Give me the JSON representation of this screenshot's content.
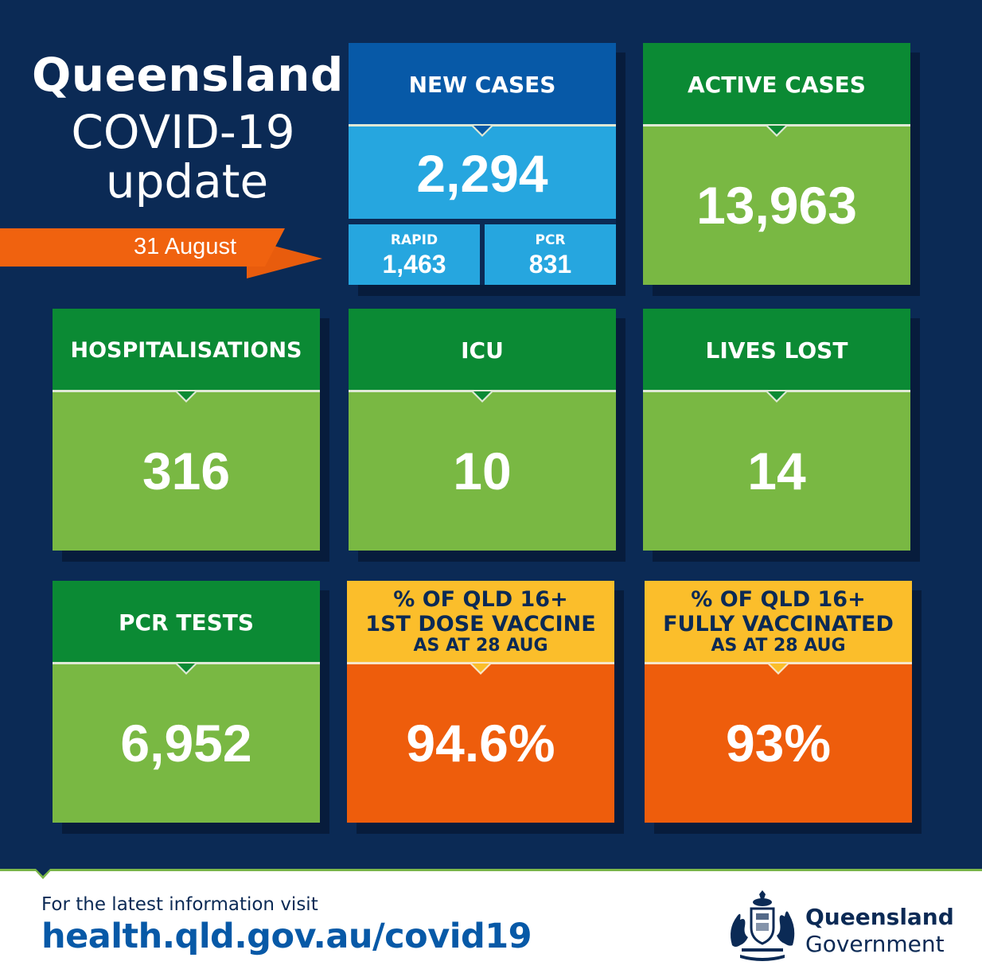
{
  "title": {
    "line1": "Queensland",
    "line2": "COVID-19",
    "line3": "update"
  },
  "date": "31 August",
  "cards": {
    "new_cases": {
      "label": "NEW CASES",
      "value": "2,294",
      "rapid": {
        "label": "RAPID",
        "value": "1,463"
      },
      "pcr": {
        "label": "PCR",
        "value": "831"
      }
    },
    "active_cases": {
      "label": "ACTIVE CASES",
      "value": "13,963"
    },
    "hospitalisations": {
      "label": "HOSPITALISATIONS",
      "value": "316"
    },
    "icu": {
      "label": "ICU",
      "value": "10"
    },
    "lives_lost": {
      "label": "LIVES LOST",
      "value": "14"
    },
    "pcr_tests": {
      "label": "PCR TESTS",
      "value": "6,952"
    },
    "first_dose": {
      "label_line1": "% OF QLD 16+",
      "label_line2": "1ST DOSE VACCINE",
      "label_line3": "AS AT 28 AUG",
      "value": "94.6%"
    },
    "fully_vaccinated": {
      "label_line1": "% OF QLD 16+",
      "label_line2": "FULLY VACCINATED",
      "label_line3": "AS AT 28 AUG",
      "value": "93%"
    }
  },
  "footer": {
    "note": "For the latest information visit",
    "url": "health.qld.gov.au/covid19",
    "org_line1": "Queensland",
    "org_line2": "Government"
  },
  "colors": {
    "background": "#0b2a55",
    "green_header": "#0b8a34",
    "green_body": "#79b843",
    "blue_header": "#0759a7",
    "blue_body": "#26a6df",
    "yellow_header": "#fbbe2b",
    "orange_body": "#ee5d0c",
    "ribbon": "#f0620f"
  },
  "icons": {
    "crest": "queensland-coat-of-arms-icon"
  }
}
